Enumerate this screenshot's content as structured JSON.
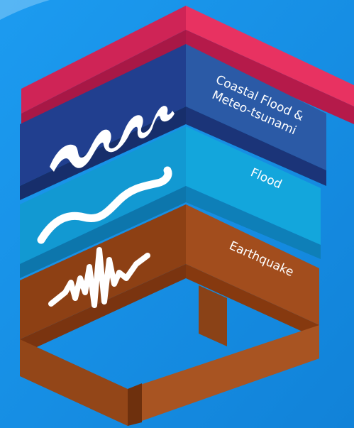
{
  "layers": [
    {
      "name": "coastal",
      "label_lines": [
        "Coastal Flood &",
        "Meteo-tsunami"
      ],
      "icon": "wave-icon",
      "color": "#2b5aa6"
    },
    {
      "name": "flood",
      "label_lines": [
        "Flood"
      ],
      "icon": "wavy-line-icon",
      "color": "#13a6dc"
    },
    {
      "name": "earthquake",
      "label_lines": [
        "Earthquake"
      ],
      "icon": "seismograph-icon",
      "color": "#a24d1d"
    }
  ],
  "colors": {
    "background": "#1590e6",
    "top_band": "#e83261",
    "coastal": "#2b5aa6",
    "flood": "#13a6dc",
    "earthquake": "#a24d1d"
  }
}
